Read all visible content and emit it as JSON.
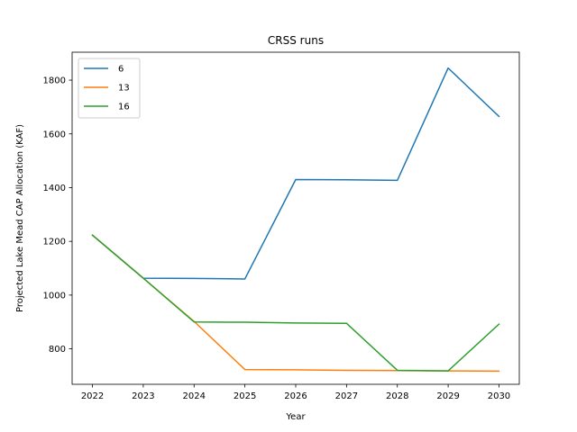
{
  "chart_data": {
    "type": "line",
    "title": "CRSS runs",
    "xlabel": "Year",
    "ylabel": "Projected Lake Mead CAP Allocation (KAF)",
    "x": [
      2022,
      2023,
      2024,
      2025,
      2026,
      2027,
      2028,
      2029,
      2030
    ],
    "xlim": [
      2021.6,
      2030.4
    ],
    "ylim": [
      668,
      1904
    ],
    "yticks": [
      800,
      1000,
      1200,
      1400,
      1600,
      1800
    ],
    "grid": false,
    "legend_position": "top-left",
    "series": [
      {
        "name": "6",
        "color": "#1f77b4",
        "values": [
          1223,
          1063,
          1062,
          1060,
          1430,
          1429,
          1427,
          1845,
          1665
        ]
      },
      {
        "name": "13",
        "color": "#ff7f0e",
        "values": [
          1223,
          1063,
          902,
          723,
          722,
          720,
          719,
          718,
          717
        ]
      },
      {
        "name": "16",
        "color": "#2ca02c",
        "values": [
          1223,
          1063,
          900,
          899,
          896,
          895,
          720,
          718,
          892
        ]
      }
    ]
  }
}
